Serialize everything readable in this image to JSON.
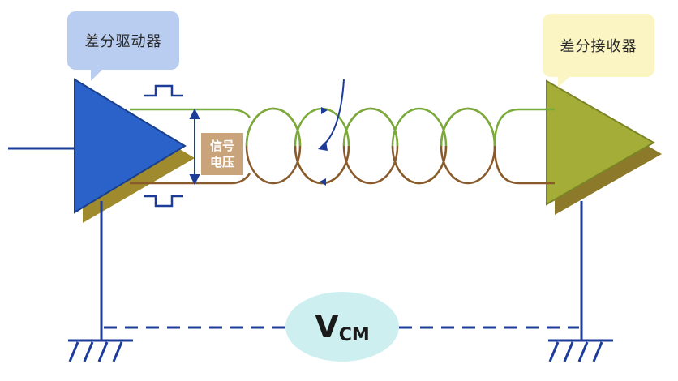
{
  "labels": {
    "driver": "差分驱动器",
    "receiver": "差分接收器",
    "signal_voltage_line1": "信号",
    "signal_voltage_line2": "电压",
    "vcm_main": "V",
    "vcm_sub": "CM"
  },
  "colors": {
    "driver_triangle": "#2a62c9",
    "driver_shadow": "#a08a2e",
    "receiver_triangle": "#a3ad38",
    "receiver_shadow": "#8c7a2a",
    "wire_green": "#7aab3a",
    "wire_brown": "#8b5a2b",
    "ground_blue": "#1d3c9a",
    "driver_callout": "#b9cdf0",
    "receiver_callout": "#fbf5c3",
    "vcm_ellipse": "#cdeff0"
  }
}
